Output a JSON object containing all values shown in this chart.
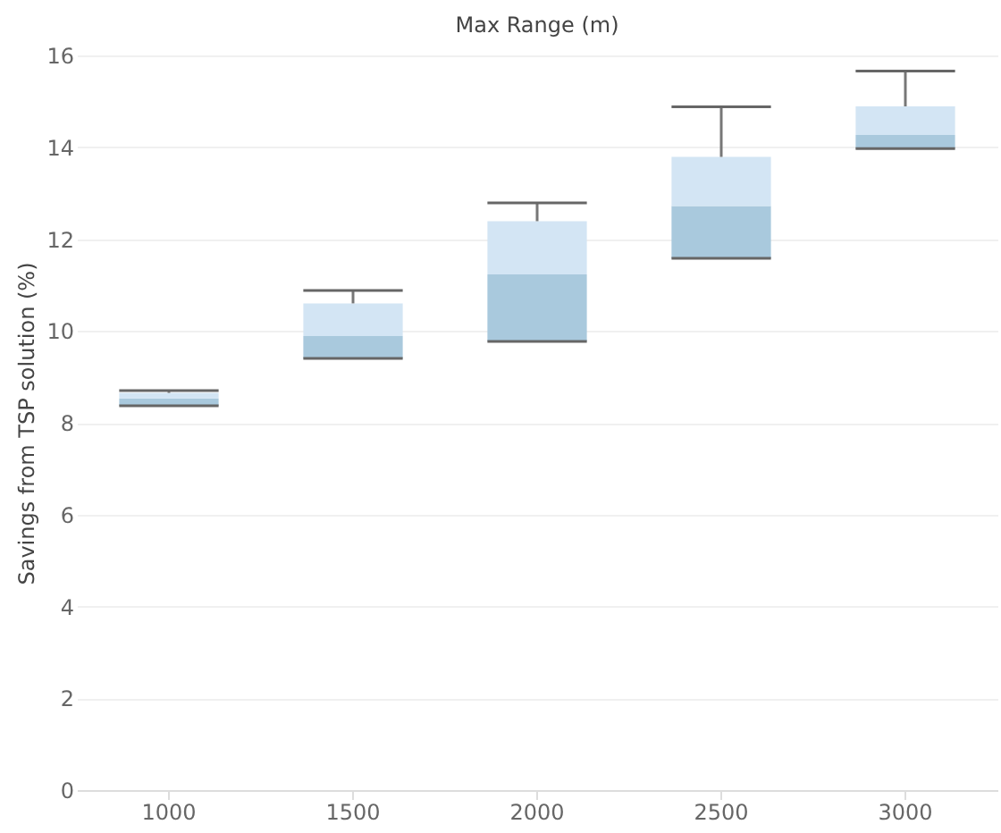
{
  "chart_data": {
    "type": "box",
    "xlabel": "Max Range (m)",
    "ylabel": "Savings from TSP solution (%)",
    "categories": [
      "1000",
      "1500",
      "2000",
      "2500",
      "3000"
    ],
    "series": [
      {
        "color": "#a9c9dd",
        "boxes": [
          {
            "low": 8.37,
            "q1": 8.37,
            "median": 8.53,
            "q3": 8.65,
            "high": 8.7
          },
          {
            "low": 9.4,
            "q1": 9.4,
            "median": 9.89,
            "q3": 10.6,
            "high": 10.88
          },
          {
            "low": 9.77,
            "q1": 9.77,
            "median": 11.23,
            "q3": 12.39,
            "high": 12.79
          },
          {
            "low": 11.58,
            "q1": 11.58,
            "median": 12.72,
            "q3": 13.79,
            "high": 14.88
          },
          {
            "low": 13.97,
            "q1": 13.97,
            "median": 14.27,
            "q3": 14.89,
            "high": 15.66
          }
        ]
      }
    ],
    "ylim": [
      0,
      16
    ],
    "yticks": [
      0,
      2,
      4,
      6,
      8,
      10,
      12,
      14,
      16
    ],
    "grid": "y"
  }
}
